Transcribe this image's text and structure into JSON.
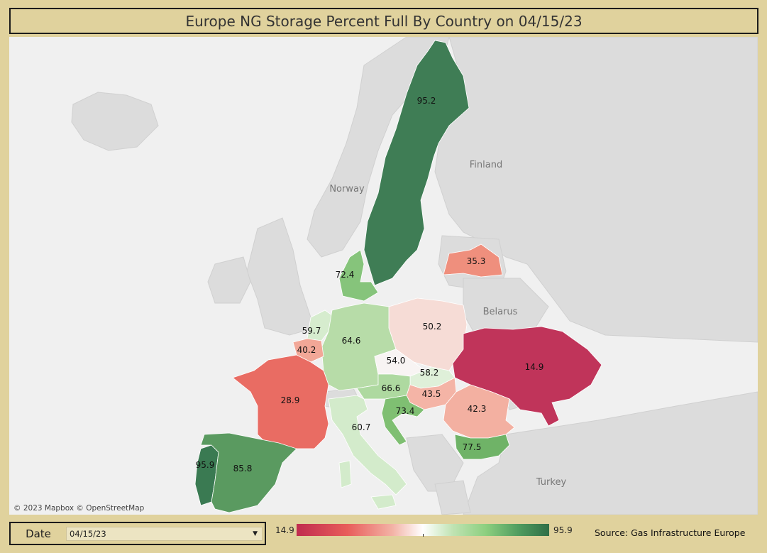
{
  "title": "Europe NG Storage Percent Full By Country on 04/15/23",
  "map": {
    "attribution": "© 2023 Mapbox © OpenStreetMap",
    "geo_labels": {
      "finland": "Finland",
      "norway": "Norway",
      "belarus": "Belarus",
      "turkey": "Turkey"
    },
    "countries": [
      {
        "key": "sweden",
        "value": "95.2",
        "color": "#3f7d55"
      },
      {
        "key": "latvia",
        "value": "35.3",
        "color": "#ef8f7d"
      },
      {
        "key": "denmark",
        "value": "72.4",
        "color": "#86c47b"
      },
      {
        "key": "poland",
        "value": "50.2",
        "color": "#f6dcd6"
      },
      {
        "key": "netherlands",
        "value": "59.7",
        "color": "#d6ecce"
      },
      {
        "key": "germany",
        "value": "64.6",
        "color": "#b7dca8"
      },
      {
        "key": "belgium",
        "value": "40.2",
        "color": "#f2a797"
      },
      {
        "key": "czechia",
        "value": "54.0",
        "color": "#f8f4f3"
      },
      {
        "key": "ukraine",
        "value": "14.9",
        "color": "#c0345a"
      },
      {
        "key": "slovakia",
        "value": "58.2",
        "color": "#dff0d9"
      },
      {
        "key": "france",
        "value": "28.9",
        "color": "#e96c63"
      },
      {
        "key": "austria",
        "value": "66.6",
        "color": "#aed9a0"
      },
      {
        "key": "hungary",
        "value": "43.5",
        "color": "#f4b4a6"
      },
      {
        "key": "romania",
        "value": "42.3",
        "color": "#f3b0a1"
      },
      {
        "key": "croatia",
        "value": "73.4",
        "color": "#7fbf72"
      },
      {
        "key": "italy",
        "value": "60.7",
        "color": "#d3ebcb"
      },
      {
        "key": "bulgaria",
        "value": "77.5",
        "color": "#6fb367"
      },
      {
        "key": "portugal",
        "value": "95.9",
        "color": "#3a7a52"
      },
      {
        "key": "spain",
        "value": "85.8",
        "color": "#5a9a60"
      }
    ]
  },
  "date_filter": {
    "label": "Date",
    "value": "04/15/23"
  },
  "legend": {
    "min": "14.9",
    "max": "95.9"
  },
  "source": "Source: Gas Infrastructure Europe"
}
